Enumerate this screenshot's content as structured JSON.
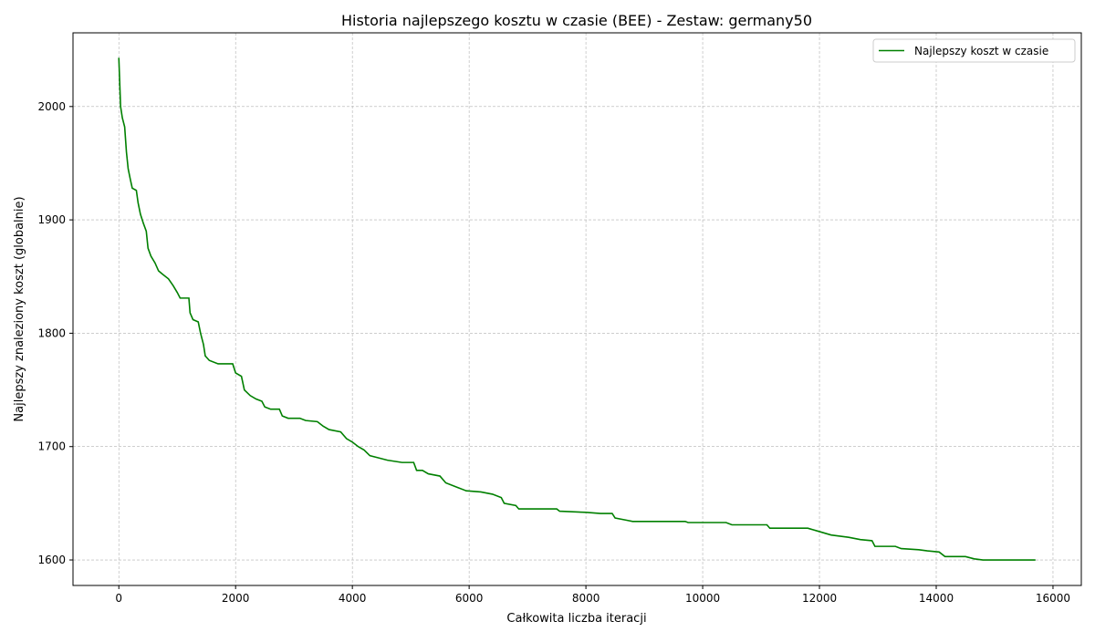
{
  "chart_data": {
    "type": "line",
    "title": "Historia najlepszego kosztu w czasie (BEE) - Zestaw: germany50",
    "xlabel": "Całkowita liczba iteracji",
    "ylabel": "Najlepszy znaleziony koszt (globalnie)",
    "x": [
      0,
      30,
      60,
      100,
      130,
      160,
      200,
      230,
      300,
      330,
      370,
      420,
      470,
      500,
      550,
      620,
      680,
      750,
      850,
      930,
      1000,
      1050,
      1200,
      1220,
      1270,
      1360,
      1400,
      1450,
      1480,
      1550,
      1700,
      1950,
      2000,
      2100,
      2150,
      2250,
      2350,
      2450,
      2500,
      2600,
      2750,
      2800,
      2900,
      3100,
      3200,
      3400,
      3500,
      3600,
      3800,
      3900,
      4000,
      4100,
      4200,
      4300,
      4450,
      4600,
      4850,
      5050,
      5100,
      5200,
      5300,
      5500,
      5600,
      5800,
      5950,
      6200,
      6400,
      6550,
      6600,
      6800,
      6850,
      7500,
      7550,
      8000,
      8250,
      8450,
      8500,
      8700,
      8800,
      9700,
      9750,
      10400,
      10500,
      11100,
      11150,
      11800,
      12000,
      12200,
      12500,
      12700,
      12900,
      12950,
      13300,
      13400,
      13700,
      13850,
      14050,
      14150,
      14500,
      14650,
      14800,
      15700
    ],
    "series": [
      {
        "name": "Najlepszy koszt w czasie",
        "color": "#008000",
        "values": [
          2043,
          2000,
          1990,
          1982,
          1960,
          1945,
          1935,
          1928,
          1926,
          1915,
          1905,
          1897,
          1890,
          1875,
          1868,
          1862,
          1855,
          1852,
          1848,
          1842,
          1836,
          1831,
          1831,
          1818,
          1812,
          1810,
          1800,
          1790,
          1780,
          1776,
          1773,
          1773,
          1765,
          1762,
          1750,
          1745,
          1742,
          1740,
          1735,
          1733,
          1733,
          1727,
          1725,
          1725,
          1723,
          1722,
          1718,
          1715,
          1713,
          1707,
          1704,
          1700,
          1697,
          1692,
          1690,
          1688,
          1686,
          1686,
          1679,
          1679,
          1676,
          1674,
          1668,
          1664,
          1661,
          1660,
          1658,
          1655,
          1650,
          1648,
          1645,
          1645,
          1643,
          1642,
          1641,
          1641,
          1637,
          1635,
          1634,
          1634,
          1633,
          1633,
          1631,
          1631,
          1628,
          1628,
          1625,
          1622,
          1620,
          1618,
          1617,
          1612,
          1612,
          1610,
          1609,
          1608,
          1607,
          1603,
          1603,
          1601,
          1600,
          1600
        ]
      }
    ],
    "xlim": [
      -785,
      16485
    ],
    "ylim": [
      1577.5,
      2065
    ],
    "xticks": [
      0,
      2000,
      4000,
      6000,
      8000,
      10000,
      12000,
      14000,
      16000
    ],
    "yticks": [
      1600,
      1700,
      1800,
      1900,
      2000
    ],
    "grid": true,
    "legend": "upper right"
  }
}
